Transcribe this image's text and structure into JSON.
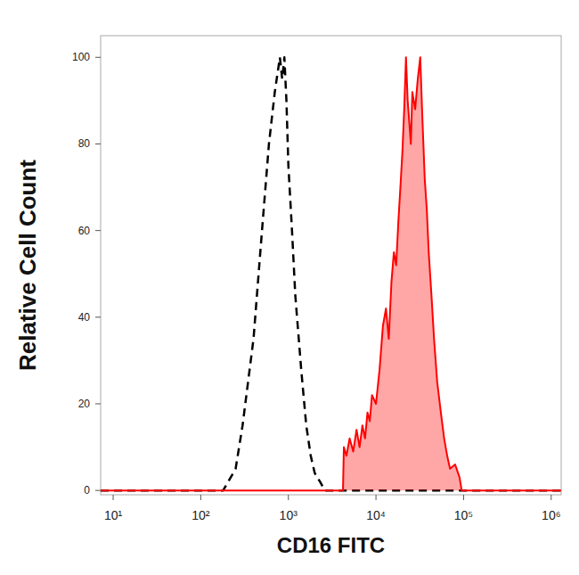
{
  "chart_data": {
    "type": "line",
    "x_label": "CD16 FITC",
    "y_label": "Relative Cell Count",
    "log": "x",
    "xlim": [
      7.2,
      1300000
    ],
    "ylim": [
      -1,
      105
    ],
    "xticks": [
      {
        "value": 10,
        "label": "10¹"
      },
      {
        "value": 100,
        "label": "10²"
      },
      {
        "value": 1000,
        "label": "10³"
      },
      {
        "value": 10000,
        "label": "10⁴"
      },
      {
        "value": 100000,
        "label": "10⁵"
      },
      {
        "value": 1000000,
        "label": "10⁶"
      }
    ],
    "yticks": [
      0,
      20,
      40,
      60,
      80,
      100
    ],
    "series": [
      {
        "color": "#000000",
        "line_style": "dashed",
        "type": "line",
        "x": [
          7.2,
          180,
          250,
          300,
          400,
          500,
          600,
          700,
          800,
          850,
          900,
          950,
          1000,
          1100,
          1200,
          1400,
          1600,
          1800,
          2000,
          2300,
          2600,
          1300000
        ],
        "values": [
          0,
          0,
          5,
          15,
          35,
          60,
          80,
          92,
          100,
          95,
          100,
          90,
          75,
          60,
          45,
          28,
          15,
          8,
          4,
          2,
          0,
          0
        ]
      },
      {
        "color": "#ff0000",
        "line_style": "solid",
        "type": "area",
        "x": [
          7.2,
          4200,
          4300,
          4600,
          5000,
          5500,
          6000,
          6500,
          7000,
          7500,
          8000,
          8500,
          9000,
          10000,
          11000,
          12000,
          13000,
          14000,
          15000,
          16000,
          17000,
          18000,
          19000,
          20000,
          21000,
          22000,
          23000,
          24000,
          25000,
          26000,
          28000,
          30000,
          32000,
          34000,
          36000,
          38000,
          40000,
          43000,
          46000,
          50000,
          55000,
          60000,
          65000,
          70000,
          80000,
          90000,
          95000,
          1300000
        ],
        "values": [
          0,
          0,
          10,
          8,
          12,
          9,
          14,
          10,
          15,
          12,
          18,
          16,
          22,
          20,
          28,
          38,
          42,
          35,
          48,
          55,
          52,
          62,
          70,
          78,
          88,
          100,
          90,
          85,
          80,
          92,
          88,
          95,
          100,
          85,
          72,
          65,
          55,
          45,
          35,
          25,
          18,
          12,
          8,
          5,
          6,
          3,
          0,
          0
        ]
      }
    ]
  }
}
